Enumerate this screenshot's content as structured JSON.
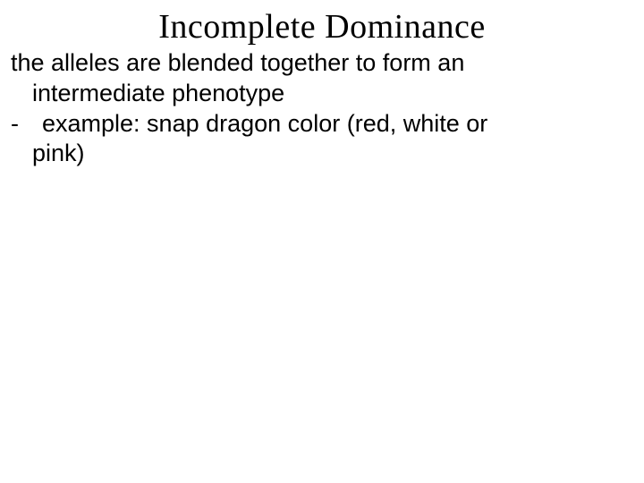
{
  "slide": {
    "title": "Incomplete Dominance",
    "body": {
      "line1": "the alleles are blended together to form an",
      "line2": "intermediate phenotype",
      "bullet_dash": "-",
      "bullet_text": "  example: snap dragon color (red, white or",
      "bullet_continue": "pink)"
    },
    "colors": {
      "background": "#ffffff",
      "text": "#000000"
    },
    "fonts": {
      "title_family": "Times New Roman",
      "title_size": 38,
      "body_family": "Comic Sans MS",
      "body_size": 27
    }
  }
}
